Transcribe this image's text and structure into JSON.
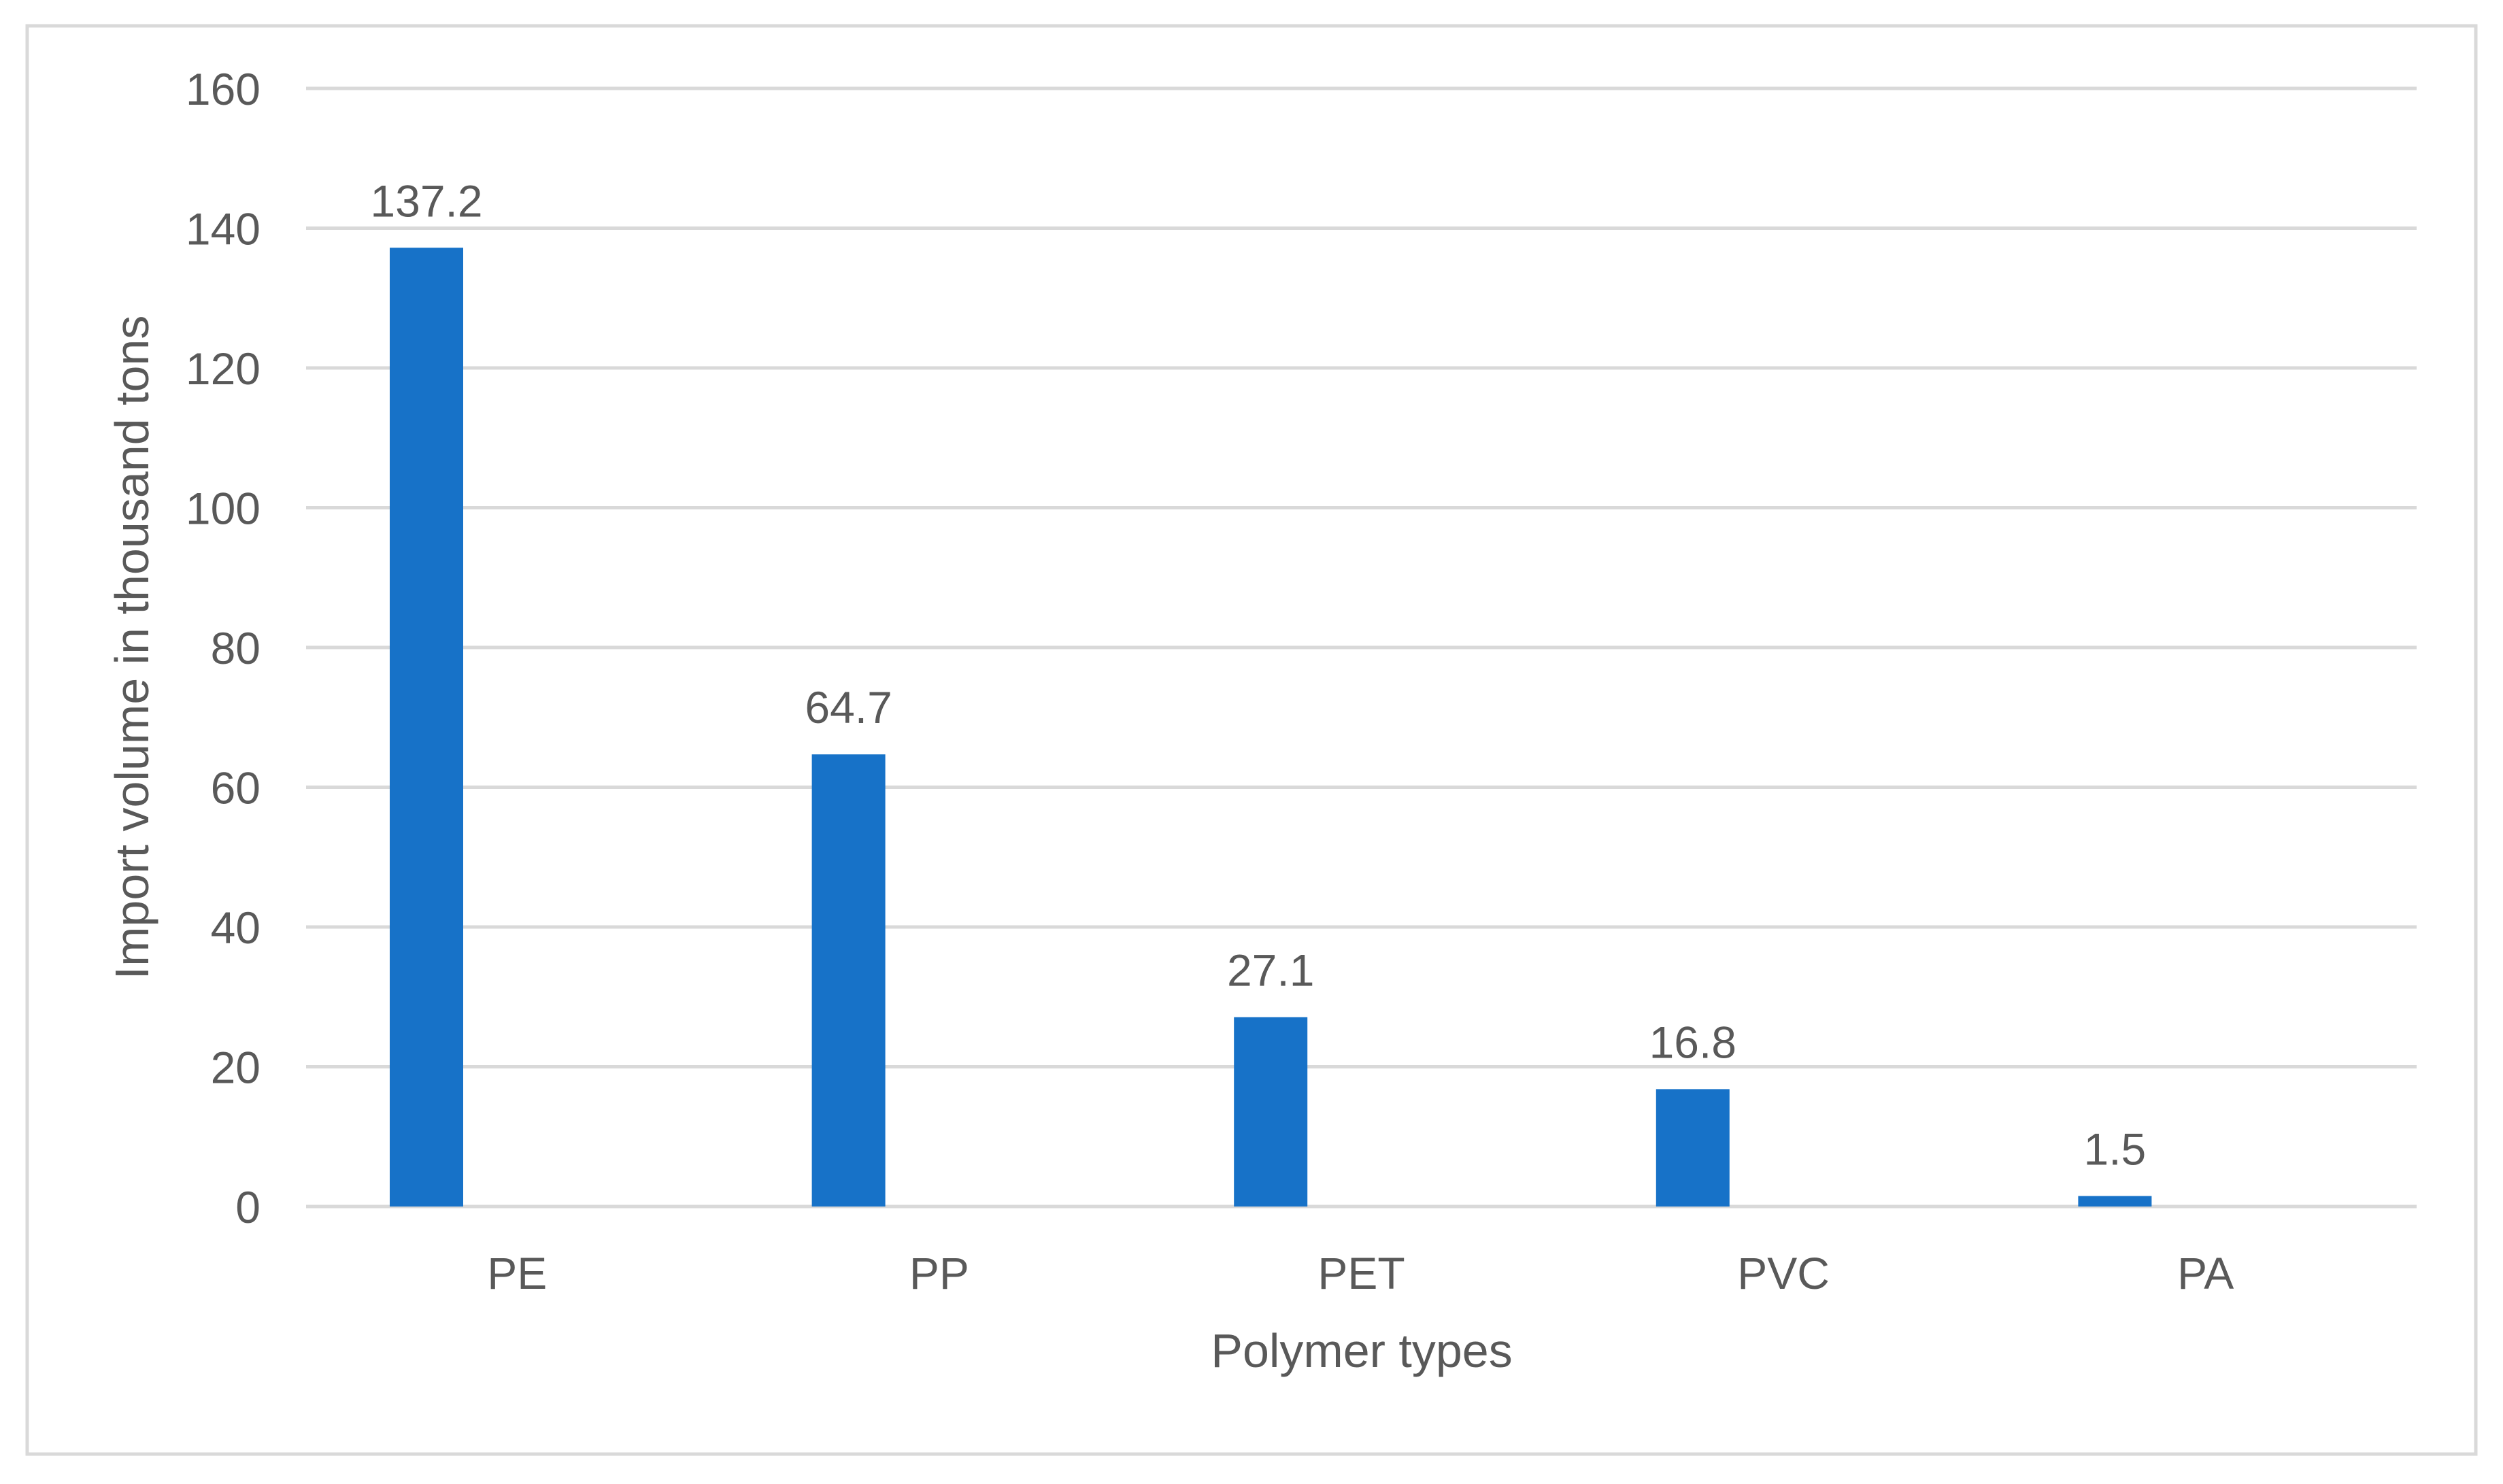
{
  "chart_data": {
    "type": "bar",
    "title": "",
    "xlabel": "Polymer types",
    "ylabel": "Import volume in thousand tons",
    "categories": [
      "PE",
      "PP",
      "PET",
      "PVC",
      "PA"
    ],
    "values": [
      137.2,
      64.7,
      27.1,
      16.8,
      1.5
    ],
    "data_labels": [
      "137.2",
      "64.7",
      "27.1",
      "16.8",
      "1.5"
    ],
    "ylim": [
      0,
      160
    ],
    "yticks": [
      0,
      20,
      40,
      60,
      80,
      100,
      120,
      140,
      160
    ],
    "grid": true,
    "legend": "none",
    "bar_color": "#1772c8",
    "grid_color": "#d9d9d9",
    "text_color": "#595959",
    "border_color": "#d9d9d9"
  }
}
